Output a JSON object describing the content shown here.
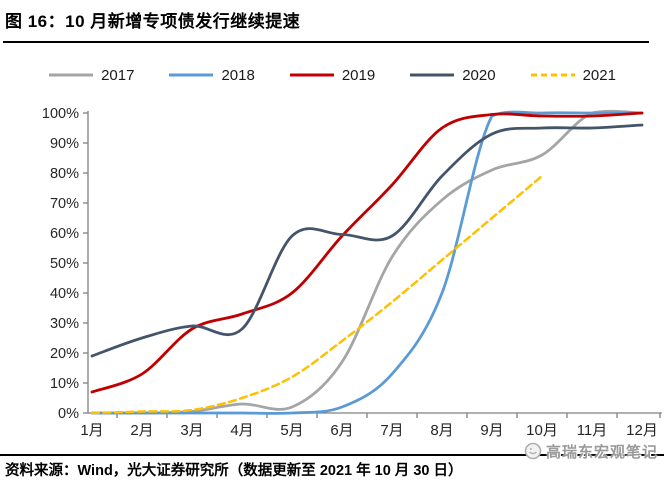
{
  "title": "图 16：10 月新增专项债发行继续提速",
  "source_note": "资料来源：Wind，光大证券研究所（数据更新至 2021 年 10 月 30 日）",
  "watermark": {
    "logo_icon": "circle-logo-icon",
    "text": "高瑞东宏观笔记"
  },
  "colors": {
    "axis": "#808080",
    "tick_label": "#262626",
    "rule": "#000000",
    "watermark_text": "#9a9a9a"
  },
  "chart_data": {
    "type": "line",
    "title": "10 月新增专项债发行继续提速 (cumulative issuance progress)",
    "categories": [
      "1月",
      "2月",
      "3月",
      "4月",
      "5月",
      "6月",
      "7月",
      "8月",
      "9月",
      "10月",
      "11月",
      "12月"
    ],
    "series": [
      {
        "name": "2017",
        "color": "#a5a5a5",
        "dashed": false,
        "values": [
          0,
          0,
          0.5,
          3,
          2,
          17,
          52,
          71,
          81,
          86,
          100,
          100
        ]
      },
      {
        "name": "2018",
        "color": "#5b9bd5",
        "dashed": false,
        "values": [
          0,
          0,
          0,
          0,
          0,
          2,
          13,
          40,
          99,
          100,
          100,
          100
        ]
      },
      {
        "name": "2019",
        "color": "#c00000",
        "dashed": false,
        "values": [
          7,
          13,
          28,
          33,
          40,
          59,
          76,
          95,
          99.5,
          99,
          99,
          100
        ]
      },
      {
        "name": "2020",
        "color": "#44546a",
        "dashed": false,
        "values": [
          19,
          25,
          29,
          28,
          59,
          59.5,
          59,
          79,
          93,
          95,
          95,
          96
        ]
      },
      {
        "name": "2021",
        "color": "#ffc000",
        "dashed": true,
        "values": [
          0,
          0.5,
          1,
          5,
          12,
          24,
          37,
          51,
          65,
          79,
          null,
          null
        ]
      }
    ],
    "xlabel": "",
    "ylabel": "",
    "ylim": [
      0,
      100
    ],
    "yticks": [
      "0%",
      "10%",
      "20%",
      "30%",
      "40%",
      "50%",
      "60%",
      "70%",
      "80%",
      "90%",
      "100%"
    ],
    "grid": false,
    "legend_position": "top"
  }
}
